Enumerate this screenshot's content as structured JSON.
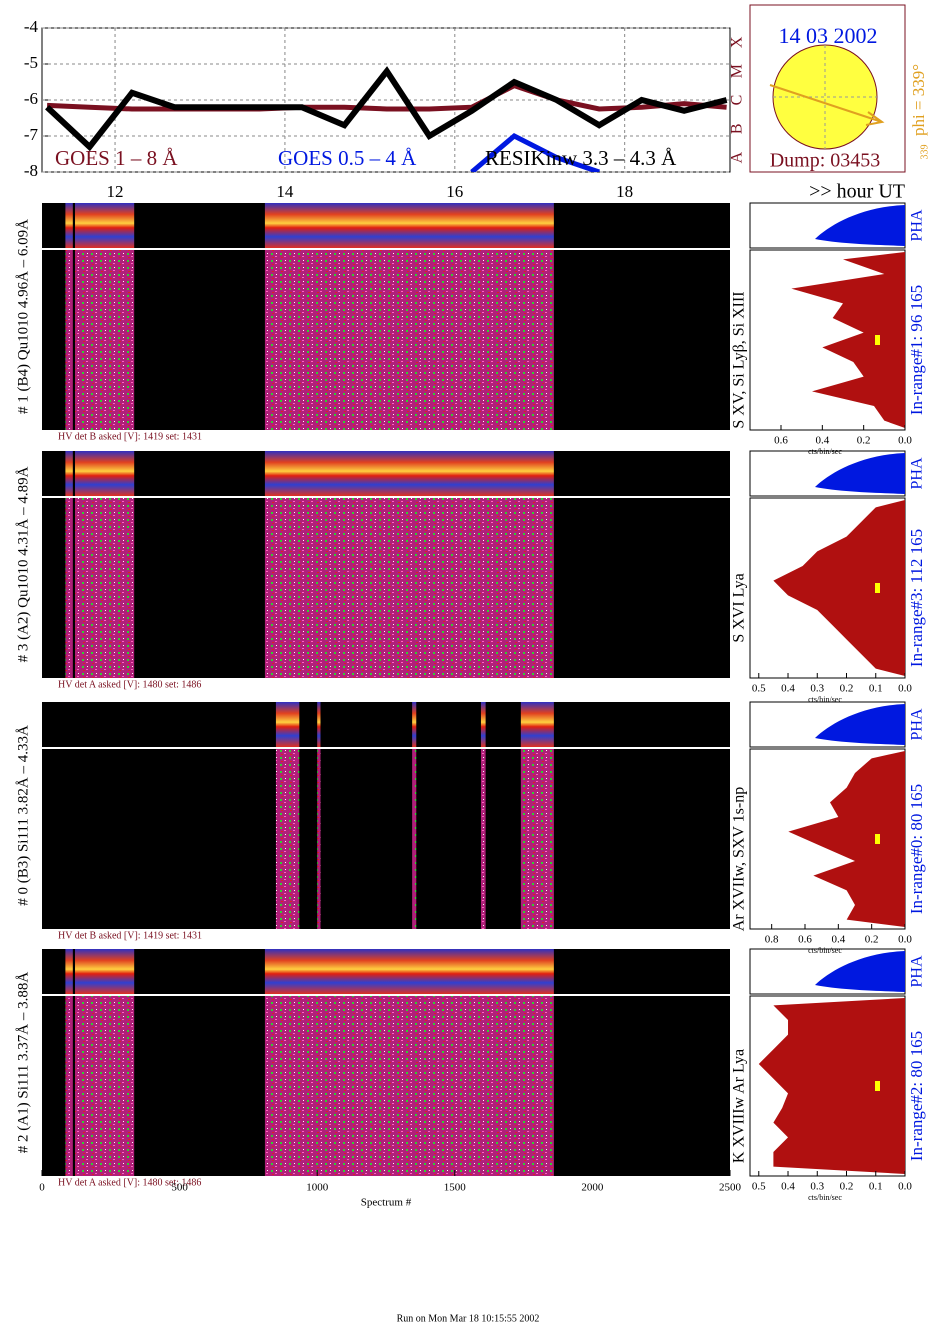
{
  "goes": {
    "type": "line",
    "x": [
      11.2,
      11.7,
      12.2,
      12.7,
      13.2,
      13.7,
      14.2,
      14.7,
      15.2,
      15.7,
      16.2,
      16.7,
      17.2,
      17.7,
      18.2,
      18.7,
      19.2
    ],
    "series": [
      {
        "name": "GOES 1 – 8 Å",
        "color": "#7a1020",
        "values": [
          -6.15,
          -6.2,
          -6.25,
          -6.25,
          -6.25,
          -6.25,
          -6.2,
          -6.2,
          -6.25,
          -6.25,
          -6.2,
          -5.6,
          -6.0,
          -6.25,
          -6.2,
          -6.1,
          -6.2
        ]
      },
      {
        "name": "GOES 0.5 – 4 Å",
        "color": "#0018e0",
        "values": [
          null,
          null,
          null,
          null,
          null,
          null,
          null,
          null,
          null,
          null,
          -8,
          -7.0,
          -7.6,
          -8,
          null,
          null,
          null
        ]
      },
      {
        "name": "RESIKinw 3.3 – 4.3 Å",
        "color": "#000000",
        "values": [
          -6.2,
          -7.3,
          -5.8,
          -6.2,
          -6.2,
          -6.2,
          -6.2,
          -6.7,
          -5.2,
          -7.0,
          -6.3,
          -5.5,
          -6.0,
          -6.7,
          -6.0,
          -6.3,
          -6.0
        ]
      }
    ],
    "xlim": [
      11.14,
      19.24
    ],
    "xticks": [
      12,
      14,
      16,
      18
    ],
    "xlabel": ">> hour UT",
    "ylim": [
      -8,
      -4
    ],
    "yticks": [
      -8,
      -7,
      -6,
      -5,
      -4
    ],
    "classes": [
      "A",
      "B",
      "C",
      "M",
      "X"
    ],
    "grid": true
  },
  "sun": {
    "date": "14 03 2002",
    "dump": "Dump: 03453",
    "phi": "phi = 339°",
    "phi_sub": "339",
    "phi_small": "339"
  },
  "spectrum_axis": {
    "xlim": [
      0,
      2500
    ],
    "xticks": [
      0,
      500,
      1000,
      1500,
      2000,
      2500
    ],
    "label": "Spectrum #"
  },
  "hist_unit": "cts/bin/sec",
  "pha": "PHA",
  "panels": [
    {
      "label": "# 1 (B4) Qu1010 4.96Å – 6.09Å",
      "hv": "HV det B asked [V]:  1419 set:  1431",
      "lines": "S XV, Si Lyβ, Si XIII",
      "range": "In-range#1:  96 165",
      "segments": [
        [
          85,
          112
        ],
        [
          120,
          335
        ],
        [
          810,
          1860
        ]
      ],
      "xlim": [
        0.75,
        0
      ],
      "xticks": [
        0.6,
        0.4,
        0.2,
        {
          "value": 0,
          "label": "0.0"
        }
      ],
      "hist": [
        0.3,
        0.1,
        0.55,
        0.3,
        0.35,
        0.2,
        0.4,
        0.25,
        0.2,
        0.45,
        0.15,
        0.1
      ]
    },
    {
      "label": "# 3 (A2) Qu1010  4.31Å – 4.89Å",
      "hv": "HV det A asked [V]:  1480 set:  1486",
      "lines": "S XVI Lya",
      "range": "In-range#3:  112 165",
      "segments": [
        [
          85,
          112
        ],
        [
          120,
          335
        ],
        [
          810,
          1860
        ]
      ],
      "xlim": [
        0.53,
        0
      ],
      "xticks": [
        0.5,
        0.4,
        0.3,
        0.2,
        0.1,
        {
          "value": 0,
          "label": "0.0"
        }
      ],
      "hist": [
        0.1,
        0.15,
        0.2,
        0.3,
        0.35,
        0.45,
        0.4,
        0.3,
        0.25,
        0.2,
        0.15,
        0.1
      ]
    },
    {
      "label": "# 0 (B3) Si111  3.82Å – 4.33Å",
      "hv": "HV det B asked [V]:  1419 set:  1431",
      "lines": "Ar XVIIw,  SXV 1s-np",
      "range": "In-range#0:  80 165",
      "segments": [
        [
          850,
          935
        ],
        [
          1000,
          1012
        ],
        [
          1345,
          1360
        ],
        [
          1595,
          1612
        ],
        [
          1740,
          1860
        ]
      ],
      "xlim": [
        0.93,
        0
      ],
      "xticks": [
        0.8,
        0.6,
        0.4,
        0.2,
        {
          "value": 0,
          "label": "0.0"
        }
      ],
      "hist": [
        0.2,
        0.3,
        0.35,
        0.45,
        0.4,
        0.7,
        0.5,
        0.3,
        0.55,
        0.35,
        0.3,
        0.35
      ]
    },
    {
      "label": "# 2 (A1) Si111  3.37Å – 3.88Å",
      "hv": "HV det A asked [V]:  1480 set:  1486",
      "lines": "K XVIIIw  Ar Lya",
      "range": "In-range#2:  80 165",
      "segments": [
        [
          85,
          112
        ],
        [
          120,
          335
        ],
        [
          810,
          1860
        ]
      ],
      "xlim": [
        0.53,
        0
      ],
      "xticks": [
        0.5,
        0.4,
        0.3,
        0.2,
        0.1,
        {
          "value": 0,
          "label": "0.0"
        }
      ],
      "hist": [
        0.45,
        0.4,
        0.4,
        0.45,
        0.5,
        0.45,
        0.4,
        0.42,
        0.45,
        0.4,
        0.45,
        0.45
      ]
    }
  ],
  "footer": "Run on Mon Mar 18 10:15:55 2002"
}
